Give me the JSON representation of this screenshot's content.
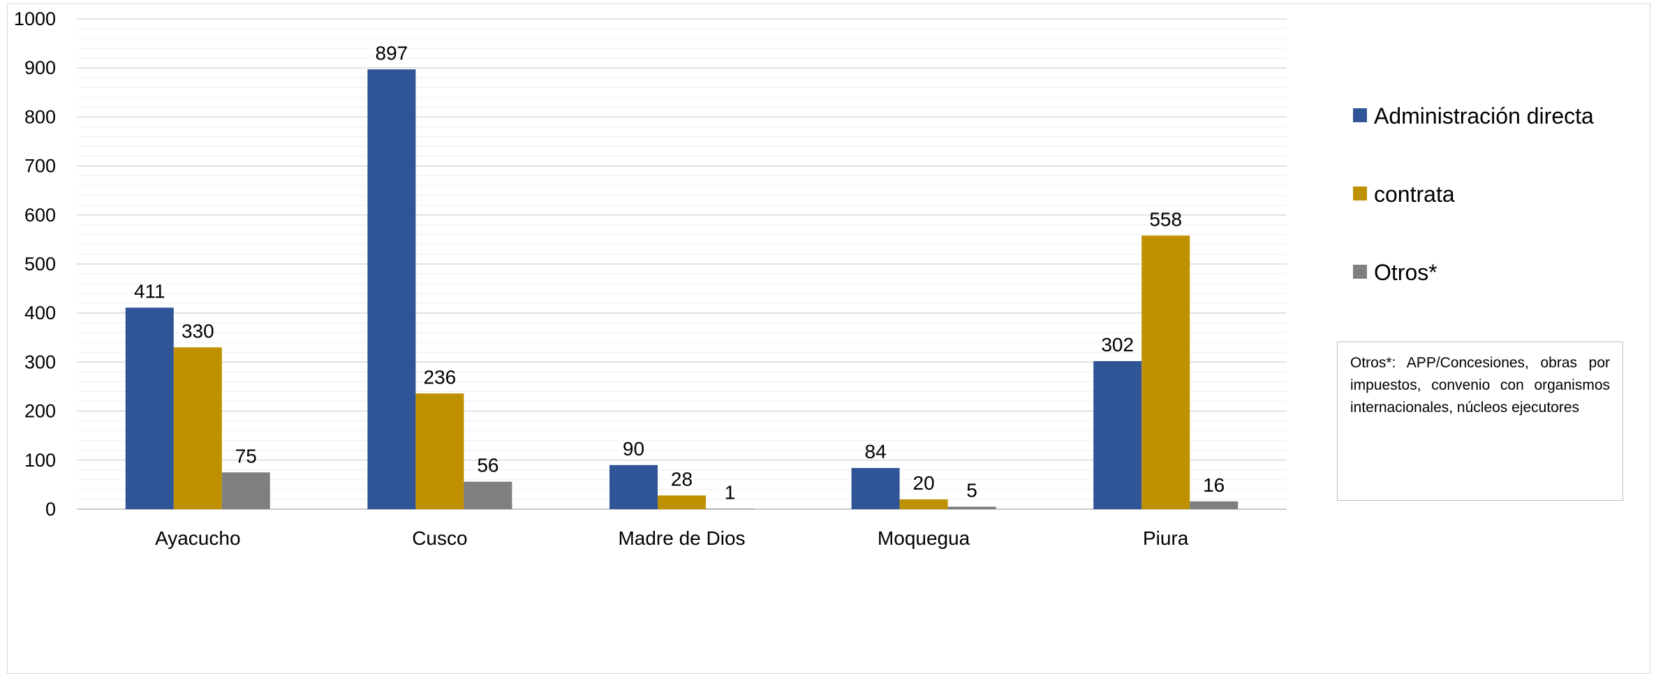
{
  "chart_data": {
    "type": "bar",
    "title": "",
    "xlabel": "",
    "ylabel": "",
    "ylim": [
      0,
      1000
    ],
    "yticks": [
      0,
      100,
      200,
      300,
      400,
      500,
      600,
      700,
      800,
      900,
      1000
    ],
    "grid": true,
    "legend_position": "right",
    "categories": [
      "Ayacucho",
      "Cusco",
      "Madre de Dios",
      "Moquegua",
      "Piura"
    ],
    "series": [
      {
        "name": "Administración directa",
        "color": "#2f5597",
        "values": [
          411,
          897,
          90,
          84,
          302
        ]
      },
      {
        "name": "contrata",
        "color": "#bf9000",
        "values": [
          330,
          236,
          28,
          20,
          558
        ]
      },
      {
        "name": "Otros*",
        "color": "#7f7f7f",
        "values": [
          75,
          56,
          1,
          5,
          16
        ]
      }
    ]
  },
  "note": {
    "text": "Otros*: APP/Concesiones, obras por impuestos, convenio con organismos internacionales, núcleos ejecutores"
  }
}
